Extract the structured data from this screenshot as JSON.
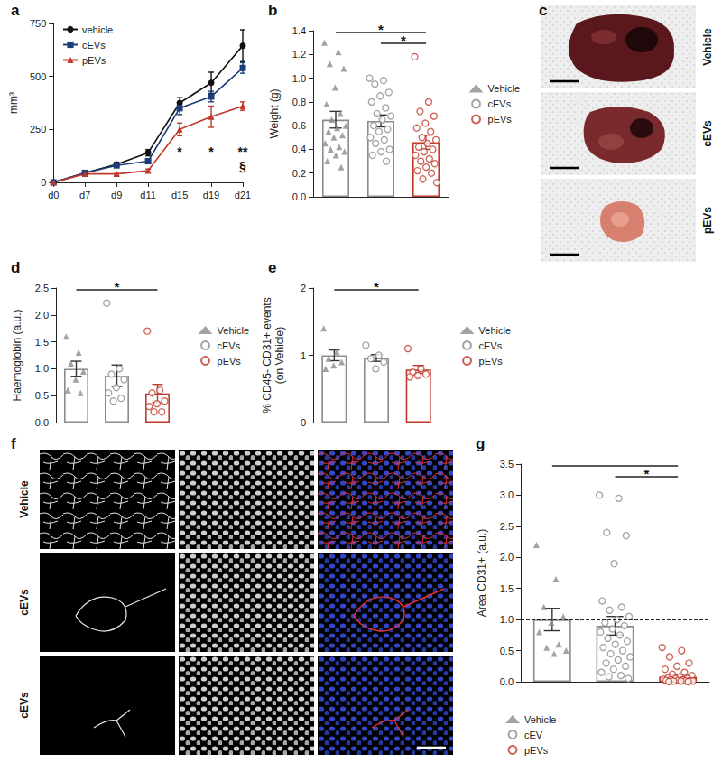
{
  "chart_data": [
    {
      "panel": "a",
      "type": "line",
      "ylabel": "mm³",
      "categories": [
        "d0",
        "d7",
        "d9",
        "d11",
        "d15",
        "d19",
        "d21"
      ],
      "ylim": [
        0,
        750
      ],
      "yticks": [
        0,
        250,
        500,
        750
      ],
      "legend": "upper left",
      "series": [
        {
          "name": "vehicle",
          "color": "#111111",
          "marker": "circle",
          "values": [
            0,
            45,
            85,
            140,
            375,
            470,
            645
          ],
          "errors": [
            0,
            8,
            10,
            15,
            25,
            50,
            75
          ]
        },
        {
          "name": "cEVs",
          "color": "#1c3d7a",
          "marker": "square",
          "values": [
            0,
            45,
            80,
            100,
            350,
            405,
            540
          ],
          "errors": [
            0,
            6,
            8,
            12,
            30,
            25,
            25
          ]
        },
        {
          "name": "pEVs",
          "color": "#c0392b",
          "marker": "triangle",
          "values": [
            0,
            40,
            40,
            55,
            250,
            310,
            360
          ],
          "errors": [
            0,
            6,
            8,
            8,
            30,
            50,
            20
          ]
        }
      ],
      "annotations": [
        {
          "x": "d15",
          "text": "*"
        },
        {
          "x": "d19",
          "text": "*"
        },
        {
          "x": "d21",
          "text": "**"
        },
        {
          "x": "d21",
          "text": "§"
        }
      ]
    },
    {
      "panel": "b",
      "type": "bar",
      "ylabel": "Weight (g)",
      "ylim": [
        0,
        1.4
      ],
      "yticks": [
        {
          "value": 0,
          "label": "0.0"
        },
        0.2,
        0.4,
        0.6,
        0.8,
        {
          "value": 1,
          "label": "1.0"
        },
        1.2,
        1.4
      ],
      "tick_labels": "y",
      "legend": "right",
      "series": [
        {
          "name": "Vehicle",
          "color": "#8c8c8c",
          "marker": "triangle",
          "mean": 0.65,
          "error": 0.07,
          "values": [
            1.3,
            1.22,
            1.12,
            1.08,
            0.92,
            0.78,
            0.7,
            0.65,
            0.6,
            0.58,
            0.55,
            0.52,
            0.5,
            0.45,
            0.42,
            0.4,
            0.38,
            0.35,
            0.3,
            0.25
          ]
        },
        {
          "name": "cEVs",
          "color": "#8c8c8c",
          "marker": "open_circle",
          "mean": 0.64,
          "error": 0.05,
          "values": [
            1.0,
            0.98,
            0.95,
            0.88,
            0.85,
            0.8,
            0.75,
            0.7,
            0.68,
            0.65,
            0.6,
            0.57,
            0.55,
            0.5,
            0.48,
            0.45,
            0.4,
            0.38,
            0.35,
            0.3
          ]
        },
        {
          "name": "pEVs",
          "color": "#c0392b",
          "marker": "open_circle",
          "mean": 0.46,
          "error": 0.06,
          "values": [
            1.18,
            0.8,
            0.72,
            0.68,
            0.62,
            0.58,
            0.55,
            0.5,
            0.48,
            0.45,
            0.42,
            0.4,
            0.38,
            0.35,
            0.32,
            0.3,
            0.28,
            0.25,
            0.22,
            0.2,
            0.15,
            0.12
          ]
        }
      ],
      "annotations": [
        {
          "from": "Vehicle",
          "to": "pEVs",
          "text": "*"
        },
        {
          "from": "cEVs",
          "to": "pEVs",
          "text": "*"
        }
      ]
    },
    {
      "panel": "d",
      "type": "bar",
      "ylabel": "Haemoglobin (a.u.)",
      "ylim": [
        0,
        2.5
      ],
      "yticks": [
        {
          "value": 0,
          "label": "0.0"
        },
        0.5,
        {
          "value": 1,
          "label": "1.0"
        },
        1.5,
        {
          "value": 2,
          "label": "2.0"
        },
        2.5
      ],
      "tick_labels": "y",
      "legend": "right",
      "series": [
        {
          "name": "Vehicle",
          "color": "#8c8c8c",
          "marker": "triangle",
          "mean": 1.0,
          "error": 0.14,
          "values": [
            1.6,
            1.3,
            1.1,
            0.95,
            0.8,
            0.6,
            0.55
          ]
        },
        {
          "name": "cEVs",
          "color": "#8c8c8c",
          "marker": "open_circle",
          "mean": 0.87,
          "error": 0.2,
          "values": [
            2.22,
            1.0,
            0.9,
            0.8,
            0.65,
            0.55,
            0.45,
            0.4
          ]
        },
        {
          "name": "pEVs",
          "color": "#c0392b",
          "marker": "open_circle",
          "mean": 0.54,
          "error": 0.17,
          "values": [
            1.7,
            0.6,
            0.55,
            0.4,
            0.35,
            0.3,
            0.2,
            0.2
          ]
        }
      ],
      "annotations": [
        {
          "from": "Vehicle",
          "to": "pEVs",
          "text": "*"
        }
      ]
    },
    {
      "panel": "e",
      "type": "bar",
      "ylabel": "% CD45- CD31+ events\n(on Vehicle)",
      "ylim": [
        0,
        2
      ],
      "yticks": [
        0,
        1,
        2
      ],
      "tick_labels": "y",
      "legend": "right",
      "series": [
        {
          "name": "Vehicle",
          "color": "#8c8c8c",
          "marker": "triangle",
          "mean": 1.0,
          "error": 0.08,
          "values": [
            1.4,
            1.05,
            0.95,
            0.9,
            0.85,
            0.8
          ]
        },
        {
          "name": "cEVs",
          "color": "#8c8c8c",
          "marker": "open_circle",
          "mean": 0.96,
          "error": 0.05,
          "values": [
            1.15,
            1.0,
            0.95,
            0.9,
            0.8
          ]
        },
        {
          "name": "pEVs",
          "color": "#c0392b",
          "marker": "open_circle",
          "mean": 0.79,
          "error": 0.06,
          "values": [
            1.1,
            0.8,
            0.75,
            0.72,
            0.7,
            0.68
          ]
        }
      ],
      "annotations": [
        {
          "from": "Vehicle",
          "to": "pEVs",
          "text": "*"
        }
      ]
    },
    {
      "panel": "g",
      "type": "bar",
      "ylabel": "Area CD31+ (a.u.)",
      "ylim": [
        0,
        3.5
      ],
      "yticks": [
        {
          "value": 0,
          "label": "0.0"
        },
        0.5,
        {
          "value": 1,
          "label": "1.0"
        },
        1.5,
        {
          "value": 2,
          "label": "2.0"
        },
        2.5,
        {
          "value": 3,
          "label": "3.0"
        },
        3.5
      ],
      "tick_labels": "y",
      "legend": "bottom",
      "reference_line": 1.0,
      "series": [
        {
          "name": "Vehicle",
          "color": "#8c8c8c",
          "marker": "triangle",
          "mean": 1.0,
          "error": 0.18,
          "values": [
            2.2,
            1.65,
            1.2,
            1.05,
            0.95,
            0.8,
            0.6,
            0.55,
            0.5,
            0.45
          ]
        },
        {
          "name": "cEV",
          "color": "#8c8c8c",
          "marker": "open_circle",
          "mean": 0.9,
          "error": 0.15,
          "values": [
            3.0,
            2.95,
            2.4,
            2.35,
            1.9,
            1.3,
            1.2,
            1.15,
            1.05,
            1.0,
            0.95,
            0.9,
            0.85,
            0.8,
            0.75,
            0.7,
            0.65,
            0.6,
            0.55,
            0.5,
            0.45,
            0.4,
            0.35,
            0.3,
            0.25,
            0.2,
            0.15,
            0.1,
            0.08,
            0.05
          ]
        },
        {
          "name": "pEVs",
          "color": "#c0392b",
          "marker": "open_circle",
          "mean": 0.08,
          "error": 0.03,
          "values": [
            0.55,
            0.5,
            0.4,
            0.3,
            0.25,
            0.2,
            0.15,
            0.12,
            0.1,
            0.08,
            0.06,
            0.05,
            0.05,
            0.04,
            0.03,
            0.03,
            0.02,
            0.02,
            0.02,
            0.01,
            0.01,
            0.01,
            0.01,
            0,
            0
          ]
        }
      ],
      "annotations": [
        {
          "from": "Vehicle",
          "to": "pEVs"
        },
        {
          "from": "cEV",
          "to": "pEVs",
          "text": "*"
        }
      ]
    }
  ],
  "image_panels": [
    {
      "panel": "c",
      "row_labels": [
        "Vehicle",
        "cEVs",
        "pEVs"
      ]
    },
    {
      "panel": "f",
      "row_labels": [
        "Vehicle",
        "cEVs",
        "cEVs"
      ]
    }
  ]
}
